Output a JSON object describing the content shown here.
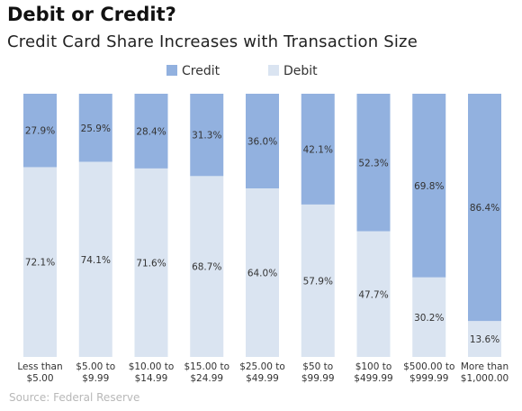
{
  "title": "Debit or Credit?",
  "subtitle": "Credit Card Share Increases with Transaction Size",
  "source": "Source: Federal Reserve",
  "colors": {
    "credit": "#92b1df",
    "debit": "#dae4f1",
    "text": "#333333"
  },
  "chart_data": {
    "type": "bar",
    "stacked": true,
    "title": "Debit or Credit?",
    "subtitle": "Credit Card Share Increases with Transaction Size",
    "ylim": [
      0,
      100
    ],
    "legend_position": "top-center",
    "grid": false,
    "categories": [
      [
        "Less than",
        "$5.00"
      ],
      [
        "$5.00 to",
        "$9.99"
      ],
      [
        "$10.00 to",
        "$14.99"
      ],
      [
        "$15.00 to",
        "$24.99"
      ],
      [
        "$25.00 to",
        "$49.99"
      ],
      [
        "$50 to",
        "$99.99"
      ],
      [
        "$100 to",
        "$499.99"
      ],
      [
        "$500.00 to",
        "$999.99"
      ],
      [
        "More than",
        "$1,000.00"
      ]
    ],
    "series": [
      {
        "name": "Credit",
        "values": [
          27.9,
          25.9,
          28.4,
          31.3,
          36.0,
          42.1,
          52.3,
          69.8,
          86.4
        ],
        "labels": [
          "27.9%",
          "25.9%",
          "28.4%",
          "31.3%",
          "36.0%",
          "42.1%",
          "52.3%",
          "69.8%",
          "86.4%"
        ]
      },
      {
        "name": "Debit",
        "values": [
          72.1,
          74.1,
          71.6,
          68.7,
          64.0,
          57.9,
          47.7,
          30.2,
          13.6
        ],
        "labels": [
          "72.1%",
          "74.1%",
          "71.6%",
          "68.7%",
          "64.0%",
          "57.9%",
          "47.7%",
          "30.2%",
          "13.6%"
        ]
      }
    ]
  }
}
